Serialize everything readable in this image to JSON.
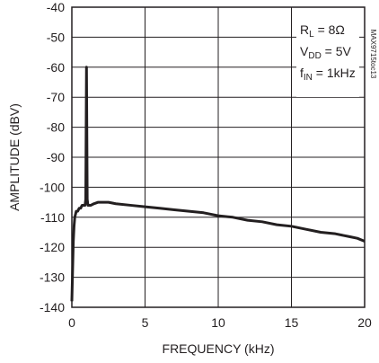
{
  "chart_data": {
    "type": "line",
    "xlabel": "FREQUENCY (kHz)",
    "ylabel": "AMPLITUDE (dBV)",
    "xlim": [
      0,
      20
    ],
    "ylim": [
      -140,
      -40
    ],
    "x_ticks": [
      "0",
      "5",
      "10",
      "15",
      "20"
    ],
    "y_ticks": [
      "-40",
      "-50",
      "-60",
      "-70",
      "-80",
      "-90",
      "-100",
      "-110",
      "-120",
      "-130",
      "-140"
    ],
    "grid": true,
    "annotations": {
      "rl_main": "R",
      "rl_sub": "L",
      "rl_value": " = 8Ω",
      "vdd_main": "V",
      "vdd_sub": "DD",
      "vdd_value": " = 5V",
      "fin_main": "f",
      "fin_sub": "IN",
      "fin_value": " = 1kHz"
    },
    "figure_code": "MAX9715toc13",
    "series": [
      {
        "color": "#231f20",
        "points": [
          [
            0.0,
            -138
          ],
          [
            0.05,
            -128
          ],
          [
            0.1,
            -118
          ],
          [
            0.15,
            -113
          ],
          [
            0.2,
            -110
          ],
          [
            0.3,
            -108
          ],
          [
            0.4,
            -108
          ],
          [
            0.5,
            -107
          ],
          [
            0.6,
            -107
          ],
          [
            0.7,
            -106
          ],
          [
            0.8,
            -106
          ],
          [
            0.9,
            -106
          ],
          [
            0.95,
            -104
          ],
          [
            1.0,
            -60
          ],
          [
            1.05,
            -104
          ],
          [
            1.1,
            -106
          ],
          [
            1.3,
            -106
          ],
          [
            1.5,
            -105.5
          ],
          [
            1.8,
            -105
          ],
          [
            2.0,
            -105
          ],
          [
            2.5,
            -105
          ],
          [
            3.0,
            -105.5
          ],
          [
            4.0,
            -106
          ],
          [
            5.0,
            -106.5
          ],
          [
            6.0,
            -107
          ],
          [
            7.0,
            -107.5
          ],
          [
            8.0,
            -108
          ],
          [
            9.0,
            -108.5
          ],
          [
            10.0,
            -109.5
          ],
          [
            11.0,
            -110
          ],
          [
            12.0,
            -111
          ],
          [
            13.0,
            -111.5
          ],
          [
            14.0,
            -112.5
          ],
          [
            15.0,
            -113
          ],
          [
            16.0,
            -114
          ],
          [
            17.0,
            -115
          ],
          [
            18.0,
            -115.5
          ],
          [
            19.0,
            -116.5
          ],
          [
            19.5,
            -117
          ],
          [
            20.0,
            -118
          ]
        ]
      }
    ]
  }
}
